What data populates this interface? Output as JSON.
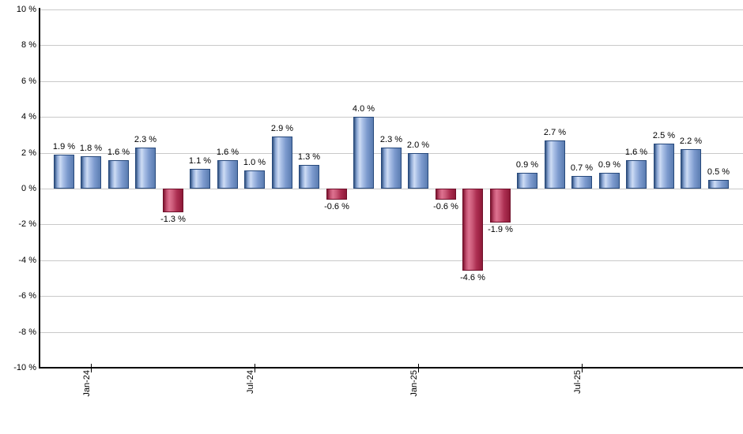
{
  "chart_data": {
    "type": "bar",
    "title": "",
    "xlabel": "",
    "ylabel": "",
    "ylim": [
      -10,
      10
    ],
    "y_tick_step": 2,
    "y_tick_suffix": " %",
    "value_label_suffix": " %",
    "grid": true,
    "legend": false,
    "values": [
      1.9,
      1.8,
      1.6,
      2.3,
      -1.3,
      1.1,
      1.6,
      1.0,
      2.9,
      1.3,
      -0.6,
      4.0,
      2.3,
      2.0,
      -0.6,
      -4.6,
      -1.9,
      0.9,
      2.7,
      0.7,
      0.9,
      1.6,
      2.5,
      2.2,
      0.5
    ],
    "value_labels": [
      "1.9 %",
      "1.8 %",
      "1.6 %",
      "2.3 %",
      "-1.3 %",
      "1.1 %",
      "1.6 %",
      "1.0 %",
      "2.9 %",
      "1.3 %",
      "-0.6 %",
      "4.0 %",
      "2.3 %",
      "2.0 %",
      "-0.6 %",
      "-4.6 %",
      "-1.9 %",
      "0.9 %",
      "2.7 %",
      "0.7 %",
      "0.9 %",
      "1.6 %",
      "2.5 %",
      "2.2 %",
      "0.5 %"
    ],
    "y_tick_labels": [
      "10 %",
      "8 %",
      "6 %",
      "4 %",
      "2 %",
      "0 %",
      "-2 %",
      "-4 %",
      "-6 %",
      "-8 %",
      "-10 %"
    ],
    "x_ticks": [
      {
        "index": 1,
        "label": "Jan-24"
      },
      {
        "index": 7,
        "label": "Jul-24"
      },
      {
        "index": 13,
        "label": "Jan-25"
      },
      {
        "index": 19,
        "label": "Jul-25"
      }
    ],
    "colors": {
      "positive_bar_gradient": [
        "#31517f 0%",
        "#8aa6d3 14%",
        "#cedcf4 30%",
        "#a9bfe6 45%",
        "#7d9bce 68%",
        "#5a7cb0 100%"
      ],
      "negative_bar_gradient": [
        "#7e1430 0%",
        "#c25070 16%",
        "#dd7290 30%",
        "#cb5a79 48%",
        "#ad2f52 70%",
        "#8e1a38 100%"
      ],
      "positive_bar_border": "#27497c",
      "negative_bar_border": "#6f0f2a",
      "gridline": "#c9c9c9",
      "axis": "#000000",
      "label_text": "#000000"
    }
  }
}
